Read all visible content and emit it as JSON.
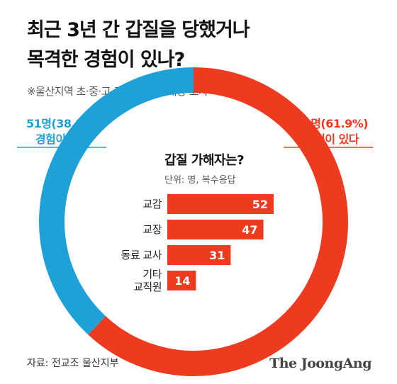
{
  "title_line1": "최근 3년 간 갑질을 당했거나",
  "title_line2": "목격한 경험이 있나?",
  "subtitle": "※울산지역 초·중·고 교사 134명 대상 조사",
  "labels": {
    "no_value": "51명(38.1%)",
    "no_text": "경험이 없다",
    "yes_value": "83명(61.9%)",
    "yes_text": "경험이 있다"
  },
  "inner": {
    "title": "갑질 가해자는?",
    "unit": "단위: 명, 복수응답"
  },
  "source": "자료: 전교조 울산지부",
  "brand": "The JoongAng",
  "colors": {
    "blue": "#1ea1d6",
    "red": "#ee3a1f"
  },
  "chart_data": [
    {
      "type": "pie",
      "categories": [
        "경험이 없다",
        "경험이 있다"
      ],
      "values": [
        51,
        83
      ],
      "percent": [
        38.1,
        61.9
      ]
    },
    {
      "type": "bar",
      "title": "갑질 가해자는?",
      "categories": [
        "교감",
        "교장",
        "동료 교사",
        "기타\n교직원"
      ],
      "values": [
        52,
        47,
        31,
        14
      ]
    }
  ]
}
